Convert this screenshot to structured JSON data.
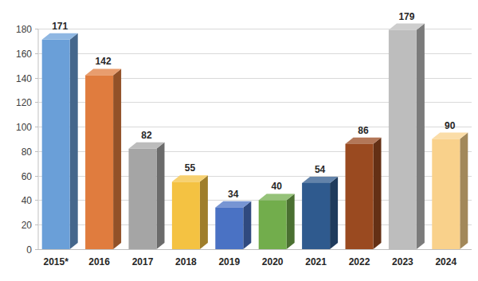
{
  "chart_data": {
    "type": "bar",
    "categories": [
      "2015*",
      "2016",
      "2017",
      "2018",
      "2019",
      "2020",
      "2021",
      "2022",
      "2023",
      "2024"
    ],
    "values": [
      171,
      142,
      82,
      55,
      34,
      40,
      54,
      86,
      179,
      90
    ],
    "colors": [
      "#6a9fd8",
      "#e07c3e",
      "#a5a5a5",
      "#f4c242",
      "#4a72c4",
      "#72ad4c",
      "#2f5a8e",
      "#9a4a20",
      "#bdbdbd",
      "#f9d18b"
    ],
    "ylim": [
      0,
      180
    ],
    "yticks": [
      0,
      20,
      40,
      60,
      80,
      100,
      120,
      140,
      160,
      180
    ],
    "grid": true,
    "data_labels": true
  }
}
